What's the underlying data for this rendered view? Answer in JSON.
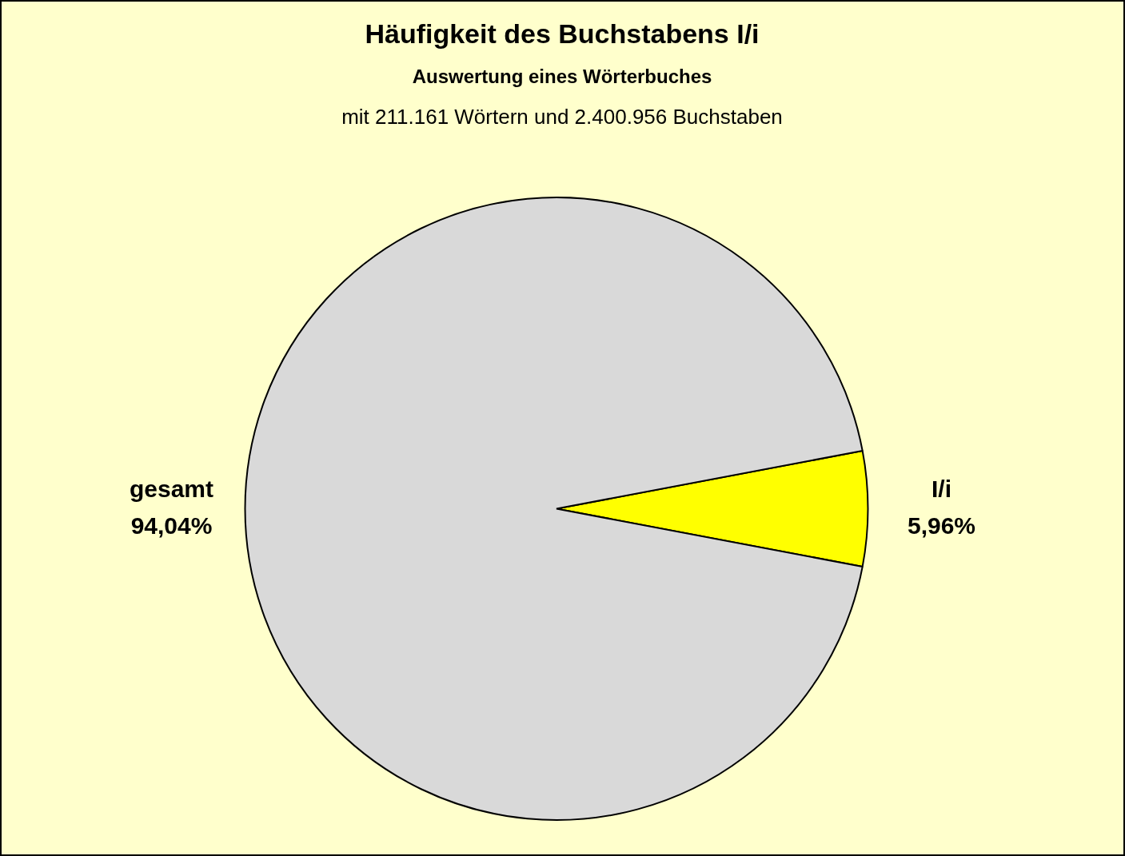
{
  "chart_data": {
    "type": "pie",
    "title": "Häufigkeit des Buchstabens I/i",
    "subtitle": "Auswertung eines Wörterbuches",
    "annotations": [
      "mit 211.161 Wörtern und 2.400.956 Buchstaben"
    ],
    "categories": [
      "I/i",
      "gesamt"
    ],
    "values": [
      5.96,
      94.04
    ],
    "colors": [
      "#ffff00",
      "#d9d9d9"
    ],
    "value_labels": [
      "5,96%",
      "94,04%"
    ],
    "legend": false
  }
}
